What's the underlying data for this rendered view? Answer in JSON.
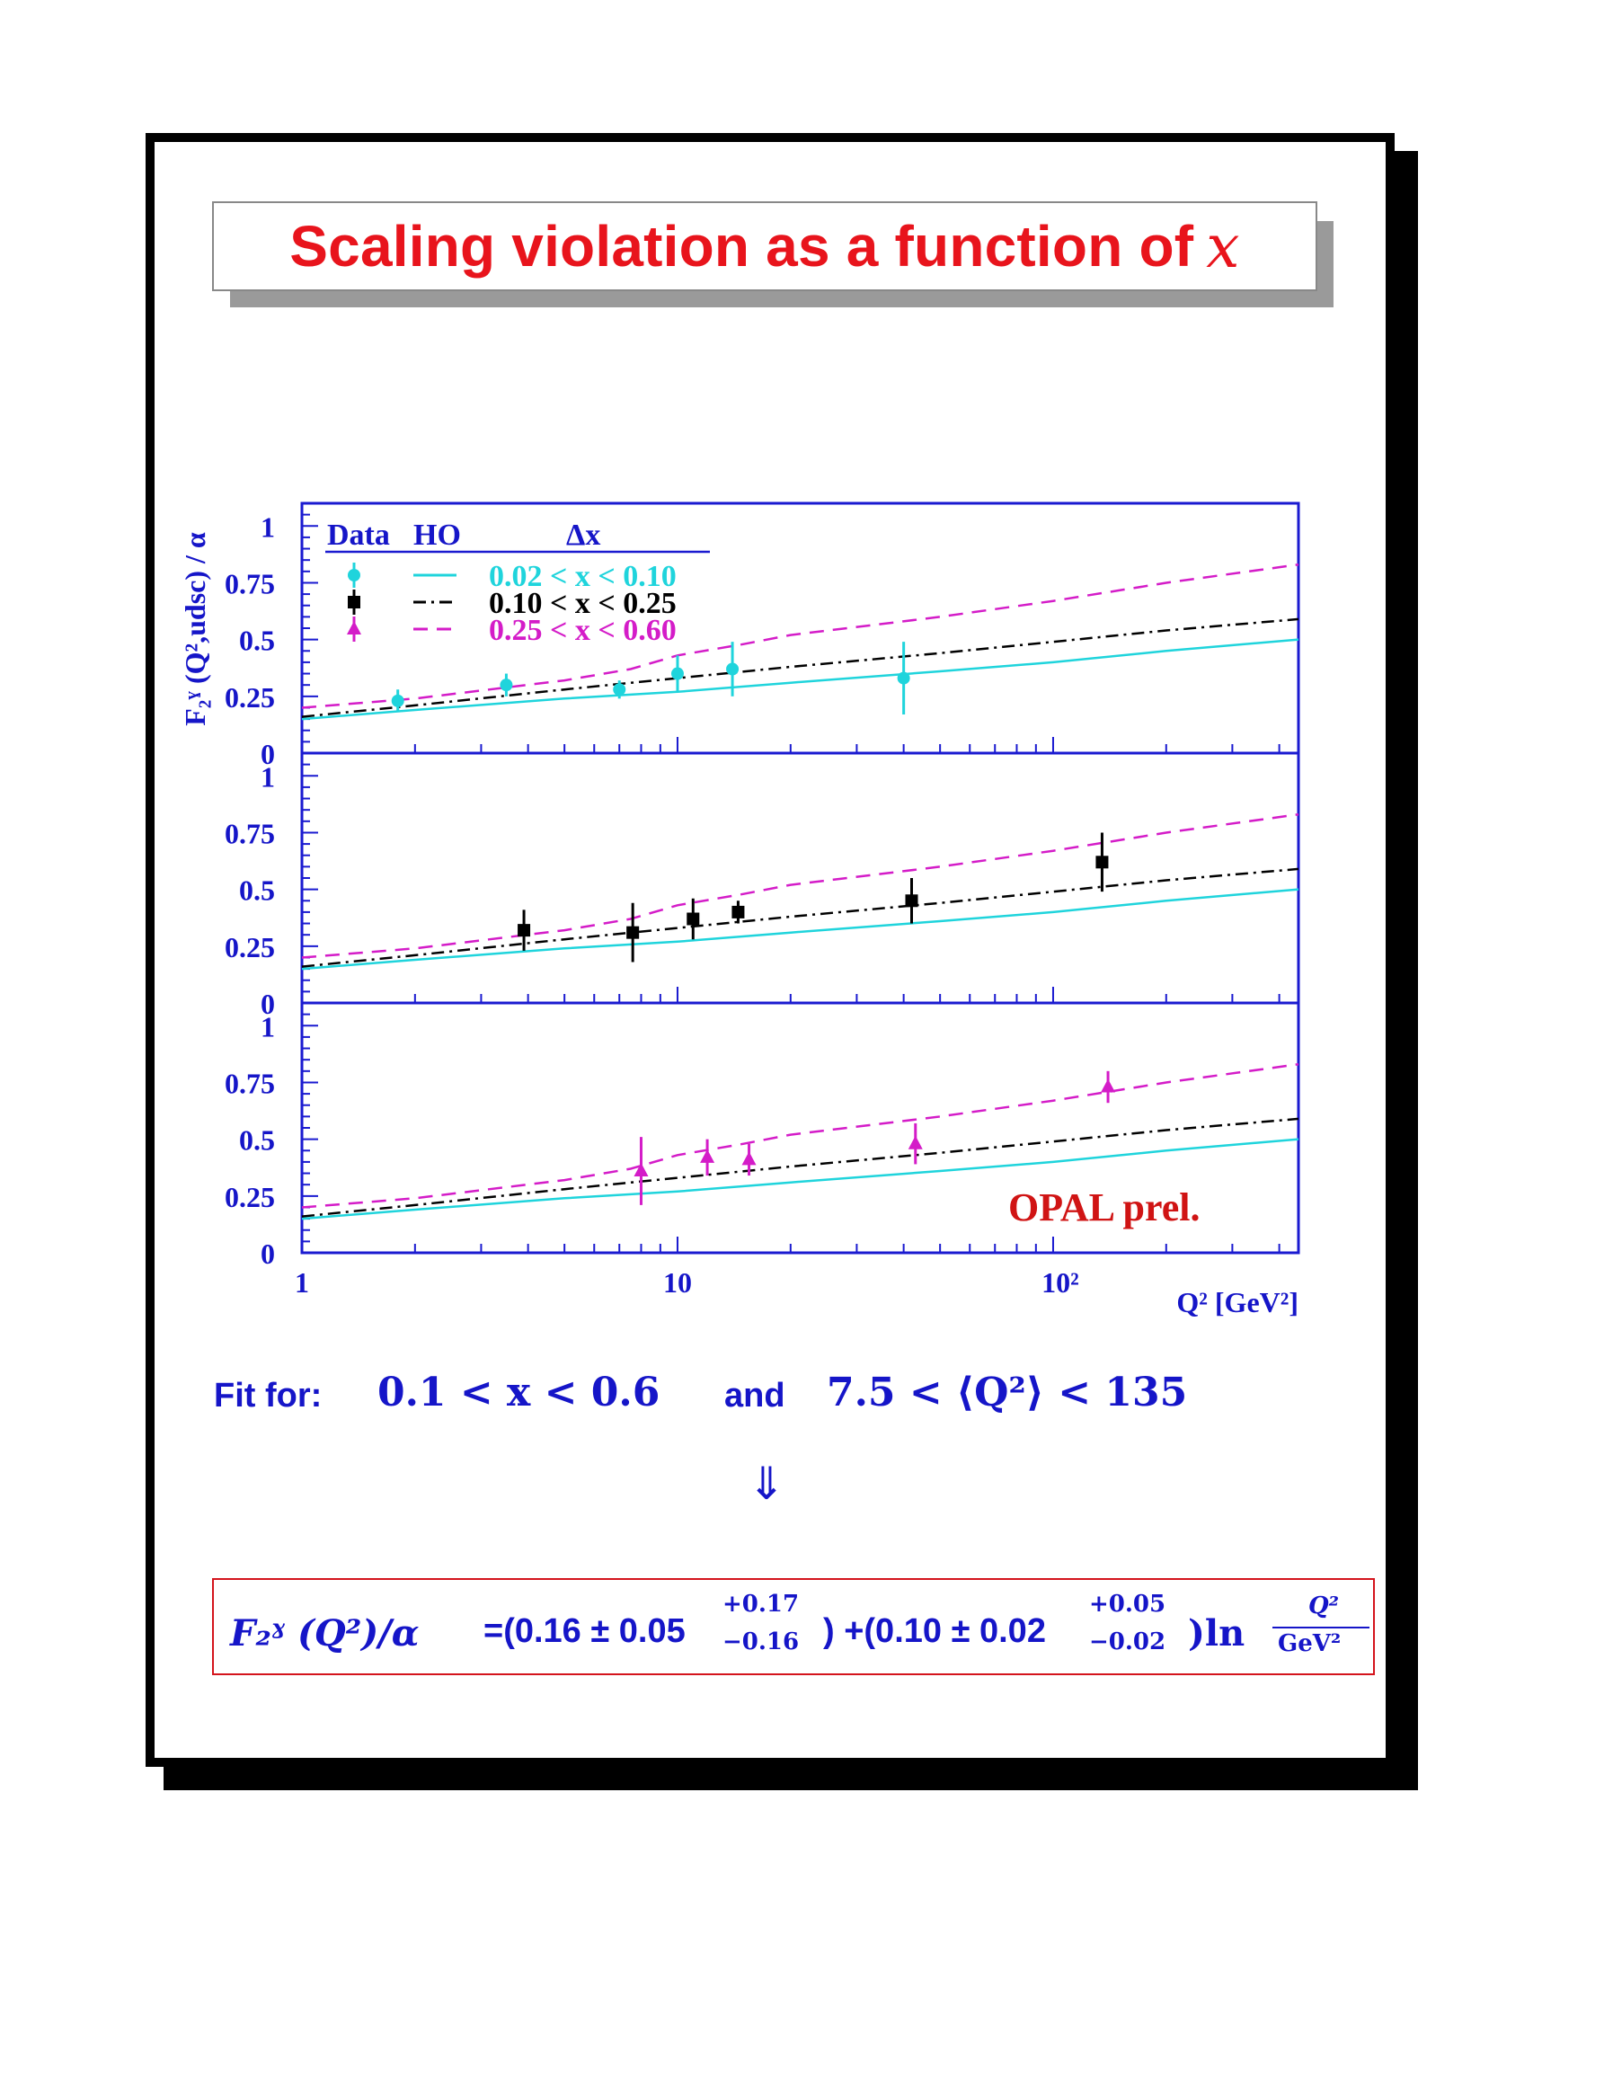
{
  "title": {
    "text": "Scaling violation as a function of",
    "variable": "x"
  },
  "colors": {
    "title": "#e8141c",
    "frame": "#1a1ad0",
    "cyan": "#1fd4dc",
    "black": "#000000",
    "magenta": "#d41cc8",
    "opal": "#d01414",
    "text_blue": "#1515c8"
  },
  "chart_data": {
    "type": "scatter",
    "xscale": "log",
    "xlim": [
      1,
      450
    ],
    "ylim": [
      0,
      1.1
    ],
    "xlabel": "Q² [GeV²]",
    "ylabel": "F₂ˠ (Q²,udsc) / α",
    "x_tick_labels": [
      "1",
      "10",
      "10²"
    ],
    "y_tick_labels": [
      "0",
      "0.25",
      "0.5",
      "0.75",
      "1"
    ],
    "legend": {
      "headers": [
        "Data",
        "HO",
        "Δx"
      ],
      "entries": [
        "0.02 < x < 0.10",
        "0.10 < x < 0.25",
        "0.25 < x < 0.60"
      ]
    },
    "annotation": "OPAL prel.",
    "curves": {
      "cyan_solid": {
        "x": [
          1,
          2,
          5,
          10,
          20,
          50,
          100,
          200,
          450
        ],
        "y": [
          0.15,
          0.19,
          0.24,
          0.27,
          0.31,
          0.36,
          0.4,
          0.45,
          0.5
        ]
      },
      "black_dashdot": {
        "x": [
          1,
          2,
          5,
          10,
          20,
          50,
          100,
          200,
          450
        ],
        "y": [
          0.16,
          0.21,
          0.28,
          0.33,
          0.38,
          0.44,
          0.49,
          0.54,
          0.59
        ]
      },
      "magenta_dashed": {
        "x": [
          1,
          2,
          5,
          7.5,
          10,
          15,
          20,
          50,
          100,
          200,
          450
        ],
        "y": [
          0.2,
          0.24,
          0.32,
          0.37,
          0.43,
          0.48,
          0.52,
          0.6,
          0.67,
          0.75,
          0.83
        ]
      }
    },
    "panels": [
      {
        "name": "0.02 < x < 0.10",
        "color": "cyan",
        "marker": "circle",
        "points": [
          {
            "x": 1.8,
            "y": 0.23,
            "err": 0.05
          },
          {
            "x": 3.5,
            "y": 0.3,
            "err": 0.05
          },
          {
            "x": 7.0,
            "y": 0.28,
            "err": 0.04
          },
          {
            "x": 10.0,
            "y": 0.35,
            "err": 0.08
          },
          {
            "x": 14.0,
            "y": 0.37,
            "err": 0.12
          },
          {
            "x": 40.0,
            "y": 0.33,
            "err": 0.16
          }
        ]
      },
      {
        "name": "0.10 < x < 0.25",
        "color": "black",
        "marker": "square",
        "points": [
          {
            "x": 3.9,
            "y": 0.32,
            "err": 0.09
          },
          {
            "x": 7.6,
            "y": 0.31,
            "err": 0.13
          },
          {
            "x": 11.0,
            "y": 0.37,
            "err": 0.09
          },
          {
            "x": 14.5,
            "y": 0.4,
            "err": 0.05
          },
          {
            "x": 42.0,
            "y": 0.45,
            "err": 0.1
          },
          {
            "x": 135.0,
            "y": 0.62,
            "err": 0.13
          }
        ]
      },
      {
        "name": "0.25 < x < 0.60",
        "color": "magenta",
        "marker": "triangle",
        "points": [
          {
            "x": 8.0,
            "y": 0.36,
            "err": 0.15
          },
          {
            "x": 12.0,
            "y": 0.42,
            "err": 0.08
          },
          {
            "x": 15.5,
            "y": 0.41,
            "err": 0.07
          },
          {
            "x": 43.0,
            "y": 0.48,
            "err": 0.09
          },
          {
            "x": 140.0,
            "y": 0.73,
            "err": 0.07
          }
        ]
      }
    ]
  },
  "fit": {
    "label": "Fit for:",
    "x_range": "0.1 < x < 0.6",
    "and": "and",
    "q2_range": "7.5 < ⟨Q²⟩ < 135",
    "arrow": "⇓"
  },
  "formula": {
    "lhs": "F₂ˠ (Q²)/α",
    "eq_open": "=(0.16 ± 0.05",
    "sup1": "+0.17",
    "sub1": "−0.16",
    "mid": ") +(0.10 ± 0.02",
    "sup2": "+0.05",
    "sub2": "−0.02",
    "close_ln": ")ln",
    "frac_num": "Q²",
    "frac_den": "GeV²"
  }
}
